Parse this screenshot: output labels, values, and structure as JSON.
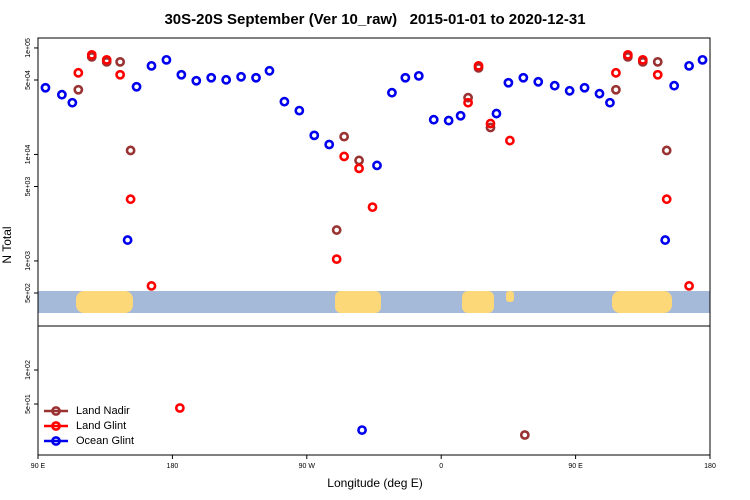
{
  "chart_data": [
    {
      "type": "scatter",
      "title": "30S-20S September (Ver 10_raw)   2015-01-01 to 2020-12-31",
      "ylabel": "N Total",
      "log_y": true,
      "xlim": [
        90,
        540
      ],
      "ylim": [
        245,
        124000
      ],
      "yticks": [
        {
          "value": 100000,
          "label": "1e+05"
        },
        {
          "value": 50000,
          "label": "5e+04"
        },
        {
          "value": 10000,
          "label": "1e+04"
        },
        {
          "value": 5000,
          "label": "5e+03"
        },
        {
          "value": 1000,
          "label": "1e+03"
        },
        {
          "value": 500,
          "label": "5e+02"
        }
      ],
      "series": [
        {
          "color": "#993333",
          "x": [
            117,
            126,
            136,
            145,
            152,
            295,
            305,
            290,
            378,
            385,
            393,
            477,
            485,
            495,
            505,
            511
          ],
          "values": [
            40500,
            82400,
            74000,
            74000,
            10900,
            14700,
            8790,
            1950,
            34100,
            65000,
            17900,
            40500,
            82400,
            74000,
            74000,
            10900
          ]
        },
        {
          "color": "#ff0000",
          "x": [
            117,
            126,
            136,
            145,
            152,
            166,
            295,
            305,
            314,
            290,
            378,
            385,
            393,
            406,
            477,
            485,
            495,
            505,
            511,
            526
          ],
          "values": [
            58400,
            86100,
            77300,
            56000,
            3800,
            583,
            9580,
            7400,
            3200,
            1040,
            30600,
            67900,
            19500,
            13500,
            58400,
            86100,
            77300,
            56000,
            3800,
            583
          ]
        },
        {
          "color": "#0000ee",
          "x": [
            95,
            106,
            113,
            156,
            166,
            176,
            186,
            196,
            206,
            216,
            226,
            236,
            245,
            255,
            265,
            275,
            285,
            317,
            327,
            336,
            345,
            355,
            365,
            373,
            397,
            405,
            415,
            425,
            436,
            446,
            456,
            466,
            473,
            516,
            526,
            535,
            150,
            510
          ],
          "values": [
            42300,
            36400,
            30600,
            43200,
            67900,
            77300,
            56000,
            49200,
            52500,
            50200,
            53600,
            52500,
            61000,
            31300,
            25800,
            15100,
            12400,
            7890,
            38000,
            52500,
            54700,
            21200,
            20800,
            23100,
            24200,
            47100,
            52500,
            48100,
            44200,
            39600,
            42300,
            37200,
            30600,
            44200,
            67900,
            77300,
            1570,
            1570
          ]
        }
      ]
    },
    {
      "type": "scatter",
      "xlabel": "Longitude (deg E)",
      "log_y": true,
      "xlim": [
        90,
        540
      ],
      "xticks": [
        {
          "value": 90,
          "label": "90 E"
        },
        {
          "value": 180,
          "label": "180"
        },
        {
          "value": 270,
          "label": "90 W"
        },
        {
          "value": 360,
          "label": "0"
        },
        {
          "value": 450,
          "label": "90 E"
        },
        {
          "value": 540,
          "label": "180"
        }
      ],
      "ylim": [
        17.7,
        245
      ],
      "yticks": [
        {
          "value": 100,
          "label": "1e+02"
        },
        {
          "value": 50,
          "label": "5e+01"
        }
      ],
      "legend": "bottomleft",
      "series": [
        {
          "name": "Land Nadir",
          "color": "#993333",
          "x": [
            416
          ],
          "values": [
            26.6
          ]
        },
        {
          "name": "Land Glint",
          "color": "#ff0000",
          "x": [
            185
          ],
          "values": [
            46.1
          ]
        },
        {
          "name": "Ocean Glint",
          "color": "#0000ee",
          "x": [
            307
          ],
          "values": [
            29.4
          ]
        }
      ]
    }
  ]
}
